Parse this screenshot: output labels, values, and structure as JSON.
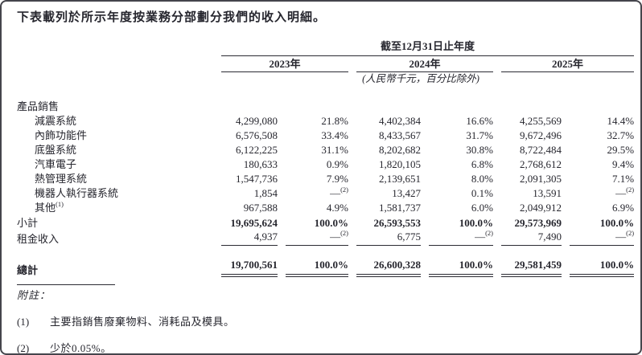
{
  "page": {
    "title": "下表載列於所示年度按業務分部劃分我們的收入明細。"
  },
  "table": {
    "period_header": "截至12月31日止年度",
    "years": [
      "2023年",
      "2024年",
      "2025年"
    ],
    "unit_note": "(人民幣千元，百分比除外)",
    "section_label": "產品銷售",
    "rows": [
      {
        "label": "減震系統",
        "c": [
          "4,299,080",
          "21.8%",
          "4,402,384",
          "16.6%",
          "4,255,569",
          "14.4%"
        ]
      },
      {
        "label": "內飾功能件",
        "c": [
          "6,576,508",
          "33.4%",
          "8,433,567",
          "31.7%",
          "9,672,496",
          "32.7%"
        ]
      },
      {
        "label": "底盤系統",
        "c": [
          "6,122,225",
          "31.1%",
          "8,202,682",
          "30.8%",
          "8,722,484",
          "29.5%"
        ]
      },
      {
        "label": "汽車電子",
        "c": [
          "180,633",
          "0.9%",
          "1,820,105",
          "6.8%",
          "2,768,612",
          "9.4%"
        ]
      },
      {
        "label": "熱管理系統",
        "c": [
          "1,547,736",
          "7.9%",
          "2,139,651",
          "8.0%",
          "2,091,305",
          "7.1%"
        ]
      },
      {
        "label": "機器人執行器系統",
        "c": [
          "1,854",
          "—",
          "13,427",
          "0.1%",
          "13,591",
          "—"
        ],
        "sups": {
          "1": "(2)",
          "5": "(2)"
        }
      },
      {
        "label": "其他",
        "label_sup": "(1)",
        "c": [
          "967,588",
          "4.9%",
          "1,581,737",
          "6.0%",
          "2,049,912",
          "6.9%"
        ]
      }
    ],
    "subtotal": {
      "label": "小計",
      "c": [
        "19,695,624",
        "100.0%",
        "26,593,553",
        "100.0%",
        "29,573,969",
        "100.0%"
      ]
    },
    "rental": {
      "label": "租金收入",
      "c": [
        "4,937",
        "—",
        "6,775",
        "—",
        "7,490",
        "—"
      ],
      "sups": {
        "1": "(2)",
        "3": "(2)",
        "5": "(2)"
      }
    },
    "total": {
      "label": "總計",
      "c": [
        "19,700,561",
        "100.0%",
        "26,600,328",
        "100.0%",
        "29,581,459",
        "100.0%"
      ]
    }
  },
  "footnotes": {
    "heading": "附註：",
    "items": [
      {
        "num": "(1)",
        "text": "主要指銷售廢棄物料、消耗品及模具。"
      },
      {
        "num": "(2)",
        "text": "少於0.05%。"
      }
    ]
  }
}
